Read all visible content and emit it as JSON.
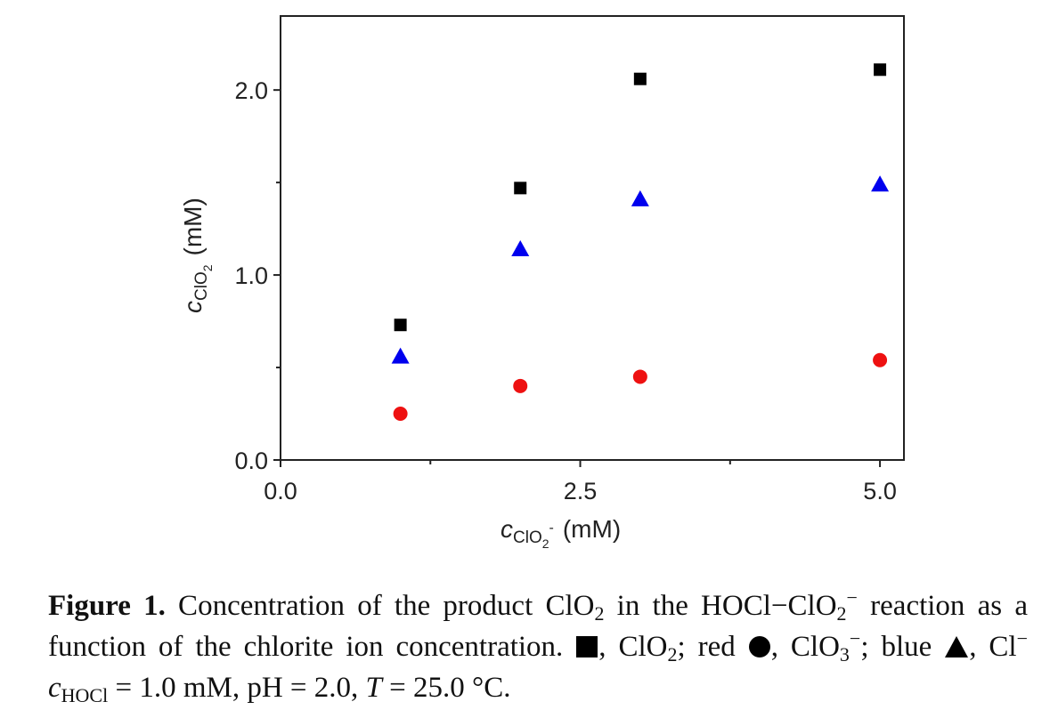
{
  "chart_data": {
    "type": "scatter",
    "x_axis": {
      "range": [
        0.0,
        5.2
      ],
      "major_ticks": [
        0.0,
        2.5,
        5.0
      ],
      "minor_ticks": [
        1.25,
        3.75
      ],
      "tick_labels": [
        "0.0",
        "2.5",
        "5.0"
      ],
      "label_main": "c",
      "label_sub": "ClO",
      "label_sub2": "2",
      "label_sup": "-",
      "label_unit": "(mM)"
    },
    "y_axis": {
      "range": [
        0.0,
        2.4
      ],
      "major_ticks": [
        0.0,
        1.0,
        2.0
      ],
      "minor_ticks": [
        0.5,
        1.5
      ],
      "tick_labels": [
        "0.0",
        "1.0",
        "2.0"
      ],
      "label_main": "c",
      "label_sub": "ClO",
      "label_sub2": "2",
      "label_unit": "(mM)"
    },
    "grid": false,
    "series": [
      {
        "marker": "square",
        "color": "#000000",
        "x": [
          1.0,
          2.0,
          3.0,
          5.0
        ],
        "y": [
          0.73,
          1.47,
          2.06,
          2.11
        ]
      },
      {
        "marker": "triangle",
        "color": "#0000ee",
        "x": [
          1.0,
          2.0,
          3.0,
          5.0
        ],
        "y": [
          0.56,
          1.14,
          1.41,
          1.49
        ]
      },
      {
        "marker": "circle",
        "color": "#ee1111",
        "x": [
          1.0,
          2.0,
          3.0,
          5.0
        ],
        "y": [
          0.25,
          0.4,
          0.45,
          0.54
        ]
      }
    ]
  },
  "caption": {
    "label": "Figure 1.",
    "t1": " Concentration of the product ClO",
    "t1_sub": "2",
    "t2": " in the HOCl−ClO",
    "t2_sub": "2",
    "t2_sup": "−",
    "t3": " reaction as a function of the chlorite ion concentration. ",
    "t4": ", ClO",
    "t4_sub": "2",
    "t5": "; red ",
    "t6": ", ClO",
    "t6_sub": "3",
    "t6_sup": "−",
    "t7": "; blue ",
    "t8": ", Cl",
    "t8_sup": "−",
    "t9_var": " c",
    "t9_sub": "HOCl",
    "t10": " = 1.0 mM, pH = 2.0, ",
    "t11_var": "T",
    "t12": " = 25.0 °C."
  }
}
